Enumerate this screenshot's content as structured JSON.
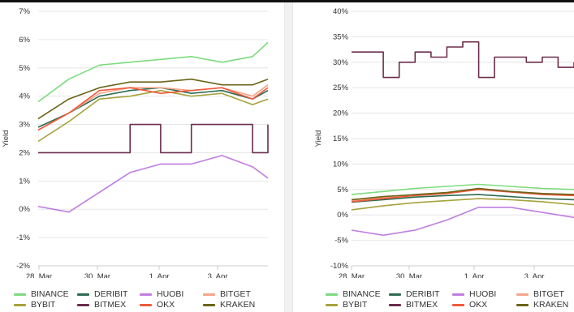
{
  "chart_data": [
    {
      "type": "line",
      "ylabel": "Yield",
      "ylim": [
        -2,
        7
      ],
      "yticks": [
        "7%",
        "6%",
        "5%",
        "4%",
        "3%",
        "2%",
        "1%",
        "0%",
        "-1%",
        "-2%"
      ],
      "xticks": [
        "28. Mar",
        "30. Mar",
        "1. Apr",
        "3. Apr"
      ],
      "xrange": [
        "2024-03-28",
        "2024-04-04T12:00"
      ],
      "grid": true,
      "legend_position": "bottom",
      "series": [
        {
          "name": "BINANCE",
          "color": "#7ddc7d",
          "x": [
            "2024-03-28",
            "2024-03-29",
            "2024-03-30",
            "2024-03-31",
            "2024-04-01",
            "2024-04-02",
            "2024-04-03",
            "2024-04-04",
            "2024-04-04T12:00"
          ],
          "values": [
            3.8,
            4.6,
            5.1,
            5.2,
            5.3,
            5.4,
            5.2,
            5.4,
            5.9
          ]
        },
        {
          "name": "DERIBIT",
          "color": "#2e6b52",
          "x": [
            "2024-03-28",
            "2024-03-29",
            "2024-03-30",
            "2024-03-31",
            "2024-04-01",
            "2024-04-02",
            "2024-04-03",
            "2024-04-04",
            "2024-04-04T12:00"
          ],
          "values": [
            2.9,
            3.4,
            4.0,
            4.2,
            4.3,
            4.1,
            4.2,
            3.9,
            4.2
          ]
        },
        {
          "name": "HUOBI",
          "color": "#c07ee0",
          "x": [
            "2024-03-28",
            "2024-03-29",
            "2024-03-30",
            "2024-03-31",
            "2024-04-01",
            "2024-04-02",
            "2024-04-03",
            "2024-04-04",
            "2024-04-04T12:00"
          ],
          "values": [
            0.1,
            -0.1,
            0.6,
            1.3,
            1.6,
            1.6,
            1.9,
            1.5,
            1.1
          ]
        },
        {
          "name": "BITGET",
          "color": "#f4a58a",
          "x": [
            "2024-03-28",
            "2024-03-29",
            "2024-03-30",
            "2024-03-31",
            "2024-04-01",
            "2024-04-02",
            "2024-04-03",
            "2024-04-04",
            "2024-04-04T12:00"
          ],
          "values": [
            2.8,
            3.4,
            4.1,
            4.3,
            4.3,
            4.2,
            4.3,
            4.0,
            4.4
          ]
        },
        {
          "name": "BYBIT",
          "color": "#a7a23b",
          "x": [
            "2024-03-28",
            "2024-03-29",
            "2024-03-30",
            "2024-03-31",
            "2024-04-01",
            "2024-04-02",
            "2024-04-03",
            "2024-04-04",
            "2024-04-04T12:00"
          ],
          "values": [
            2.4,
            3.1,
            3.9,
            4.0,
            4.2,
            4.0,
            4.1,
            3.7,
            3.9
          ]
        },
        {
          "name": "BITMEX",
          "color": "#6b2d4b",
          "x": [
            "2024-03-28",
            "2024-03-29",
            "2024-03-30",
            "2024-03-31",
            "2024-04-01",
            "2024-04-02",
            "2024-04-03",
            "2024-04-04",
            "2024-04-04T12:00"
          ],
          "values": [
            2.0,
            2.0,
            2.0,
            3.0,
            2.0,
            3.0,
            3.0,
            2.0,
            3.0
          ]
        },
        {
          "name": "OKX",
          "color": "#f05a3c",
          "x": [
            "2024-03-28",
            "2024-03-29",
            "2024-03-30",
            "2024-03-31",
            "2024-04-01",
            "2024-04-02",
            "2024-04-03",
            "2024-04-04",
            "2024-04-04T12:00"
          ],
          "values": [
            2.8,
            3.4,
            4.2,
            4.3,
            4.1,
            4.2,
            4.3,
            3.9,
            4.3
          ]
        },
        {
          "name": "KRAKEN",
          "color": "#6b6418",
          "x": [
            "2024-03-28",
            "2024-03-29",
            "2024-03-30",
            "2024-03-31",
            "2024-04-01",
            "2024-04-02",
            "2024-04-03",
            "2024-04-04",
            "2024-04-04T12:00"
          ],
          "values": [
            3.2,
            3.9,
            4.3,
            4.5,
            4.5,
            4.6,
            4.4,
            4.4,
            4.6
          ]
        }
      ]
    },
    {
      "type": "line",
      "ylabel": "Yield",
      "ylim": [
        -10,
        40
      ],
      "yticks": [
        "40%",
        "35%",
        "30%",
        "25%",
        "20%",
        "15%",
        "10%",
        "5%",
        "0%",
        "-5%",
        "-10%"
      ],
      "xticks": [
        "28. Mar",
        "30. Mar",
        "1. Apr",
        "3. Apr"
      ],
      "xrange": [
        "2024-03-28",
        "2024-04-04"
      ],
      "grid": true,
      "legend_position": "bottom",
      "series": [
        {
          "name": "BINANCE",
          "color": "#7ddc7d",
          "x": [
            "2024-03-28",
            "2024-03-29",
            "2024-03-30",
            "2024-03-31",
            "2024-04-01",
            "2024-04-02",
            "2024-04-03",
            "2024-04-04"
          ],
          "values": [
            4.0,
            4.6,
            5.2,
            5.6,
            6.0,
            5.6,
            5.2,
            5.0
          ]
        },
        {
          "name": "DERIBIT",
          "color": "#2e6b52",
          "x": [
            "2024-03-28",
            "2024-03-29",
            "2024-03-30",
            "2024-03-31",
            "2024-04-01",
            "2024-04-02",
            "2024-04-03",
            "2024-04-04"
          ],
          "values": [
            2.5,
            3.0,
            3.5,
            3.8,
            4.0,
            3.6,
            3.2,
            3.0
          ]
        },
        {
          "name": "HUOBI",
          "color": "#c07ee0",
          "x": [
            "2024-03-28",
            "2024-03-29",
            "2024-03-30",
            "2024-03-31",
            "2024-04-01",
            "2024-04-02",
            "2024-04-03",
            "2024-04-04"
          ],
          "values": [
            -3.0,
            -4.0,
            -3.0,
            -1.0,
            1.5,
            1.5,
            0.5,
            -0.5
          ]
        },
        {
          "name": "BITGET",
          "color": "#f4a58a",
          "x": [
            "2024-03-28",
            "2024-03-29",
            "2024-03-30",
            "2024-03-31",
            "2024-04-01",
            "2024-04-02",
            "2024-04-03",
            "2024-04-04"
          ],
          "values": [
            2.8,
            3.4,
            3.8,
            4.4,
            5.0,
            4.6,
            4.2,
            4.0
          ]
        },
        {
          "name": "BYBIT",
          "color": "#a7a23b",
          "x": [
            "2024-03-28",
            "2024-03-29",
            "2024-03-30",
            "2024-03-31",
            "2024-04-01",
            "2024-04-02",
            "2024-04-03",
            "2024-04-04"
          ],
          "values": [
            1.0,
            1.8,
            2.4,
            2.8,
            3.2,
            3.0,
            2.6,
            2.0
          ]
        },
        {
          "name": "BITMEX",
          "color": "#6b2d4b",
          "x": [
            "2024-03-28",
            "2024-03-28T12:00",
            "2024-03-29",
            "2024-03-29T12:00",
            "2024-03-30",
            "2024-03-30T12:00",
            "2024-03-31",
            "2024-03-31T12:00",
            "2024-04-01",
            "2024-04-01T12:00",
            "2024-04-02",
            "2024-04-02T12:00",
            "2024-04-03",
            "2024-04-03T12:00",
            "2024-04-04"
          ],
          "values": [
            32,
            32,
            27,
            30,
            32,
            31,
            33,
            34,
            27,
            31,
            31,
            30,
            31,
            29,
            30
          ]
        },
        {
          "name": "OKX",
          "color": "#f05a3c",
          "x": [
            "2024-03-28",
            "2024-03-29",
            "2024-03-30",
            "2024-03-31",
            "2024-04-01",
            "2024-04-02",
            "2024-04-03",
            "2024-04-04"
          ],
          "values": [
            2.6,
            3.2,
            3.8,
            4.2,
            5.0,
            4.5,
            4.0,
            3.8
          ]
        },
        {
          "name": "KRAKEN",
          "color": "#6b6418",
          "x": [
            "2024-03-28",
            "2024-03-29",
            "2024-03-30",
            "2024-03-31",
            "2024-04-01",
            "2024-04-02",
            "2024-04-03",
            "2024-04-04"
          ],
          "values": [
            3.0,
            3.6,
            4.0,
            4.4,
            5.2,
            4.6,
            4.2,
            4.0
          ]
        }
      ]
    }
  ]
}
